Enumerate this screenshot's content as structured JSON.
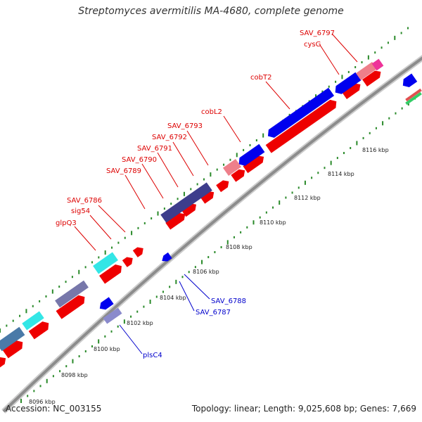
{
  "title": "Streptomyces avermitilis MA-4680, complete genome",
  "footer": {
    "accession": "Accession: NC_003155",
    "summary": "Topology: linear; Length: 9,025,608 bp; Genes: 7,669"
  },
  "colors": {
    "forward_cds": "#ee0000",
    "reverse_cds": "#0000ee",
    "rna": "#33e6e6",
    "gene_blend": "#3d3d8c",
    "pink": "#ee7f8a",
    "magenta": "#ee3399",
    "axis": "#999999",
    "dots": "#2a8a2a",
    "label_red": "#dd0000",
    "label_blue": "#0000cc"
  },
  "gene_labels_top": [
    "SAV_6797",
    "cysG",
    "cobT2",
    "cobL2",
    "SAV_6793",
    "SAV_6792",
    "SAV_6791",
    "SAV_6790",
    "SAV_6789",
    "SAV_6786",
    "sig54",
    "glpQ3"
  ],
  "gene_labels_bottom": [
    "SAV_6788",
    "SAV_6787",
    "plsC4"
  ],
  "kbp_ticks": [
    "8116 kbp",
    "8114 kbp",
    "8112 kbp",
    "8110 kbp",
    "8108 kbp",
    "8106 kbp",
    "8104 kbp",
    "8102 kbp",
    "8100 kbp",
    "8098 kbp",
    "8096 kbp"
  ]
}
